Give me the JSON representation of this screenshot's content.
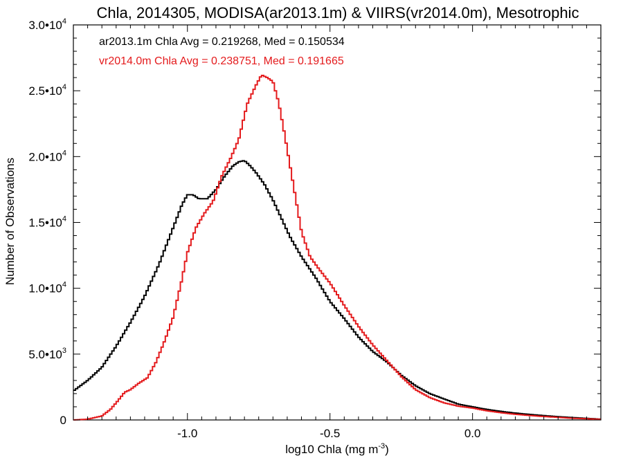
{
  "chart_data": {
    "type": "line",
    "title": "Chla, 2014305, MODISA(ar2013.1m) & VIIRS(vr2014.0m), Mesotrophic",
    "xlabel": "log10 Chla (mg m",
    "xlabel_sup": "-3",
    "xlabel_end": ")",
    "ylabel": "Number of Observations",
    "xlim": [
      -1.4,
      0.45
    ],
    "ylim": [
      0,
      30000
    ],
    "x_ticks": [
      {
        "value": -1.0,
        "label": "-1.0"
      },
      {
        "value": -0.5,
        "label": "-0.5"
      },
      {
        "value": 0.0,
        "label": "0.0"
      }
    ],
    "y_ticks": [
      {
        "value": 0,
        "mant": "0",
        "exp": ""
      },
      {
        "value": 5000,
        "mant": "5.0•10",
        "exp": "3"
      },
      {
        "value": 10000,
        "mant": "1.0•10",
        "exp": "4"
      },
      {
        "value": 15000,
        "mant": "1.5•10",
        "exp": "4"
      },
      {
        "value": 20000,
        "mant": "2.0•10",
        "exp": "4"
      },
      {
        "value": 25000,
        "mant": "2.5•10",
        "exp": "4"
      },
      {
        "value": 30000,
        "mant": "3.0•10",
        "exp": "4"
      }
    ],
    "legend": [
      {
        "text": "ar2013.1m Chla Avg = 0.219268, Med = 0.150534",
        "color": "#000000"
      },
      {
        "text": "vr2014.0m Chla Avg = 0.238751, Med = 0.191665",
        "color": "#e41a1c"
      }
    ],
    "series": [
      {
        "color": "#000000",
        "x": [
          -1.4,
          -1.35,
          -1.3,
          -1.25,
          -1.2,
          -1.15,
          -1.1,
          -1.05,
          -1.02,
          -1.0,
          -0.98,
          -0.96,
          -0.93,
          -0.9,
          -0.87,
          -0.84,
          -0.82,
          -0.8,
          -0.78,
          -0.76,
          -0.73,
          -0.7,
          -0.67,
          -0.64,
          -0.6,
          -0.55,
          -0.5,
          -0.45,
          -0.4,
          -0.35,
          -0.3,
          -0.25,
          -0.2,
          -0.15,
          -0.1,
          -0.05,
          0.0,
          0.05,
          0.1,
          0.15,
          0.2,
          0.25,
          0.3,
          0.35,
          0.4,
          0.45
        ],
        "y": [
          2200,
          3000,
          4000,
          5600,
          7400,
          9400,
          11800,
          14600,
          16300,
          17100,
          17100,
          16800,
          16800,
          17500,
          18500,
          19300,
          19600,
          19700,
          19300,
          18800,
          17900,
          16700,
          15300,
          13900,
          12400,
          10800,
          9000,
          7700,
          6300,
          5200,
          4400,
          3400,
          2600,
          2000,
          1600,
          1200,
          1000,
          800,
          650,
          520,
          420,
          330,
          250,
          180,
          120,
          60
        ]
      },
      {
        "color": "#e41a1c",
        "x": [
          -1.4,
          -1.35,
          -1.3,
          -1.27,
          -1.25,
          -1.22,
          -1.2,
          -1.17,
          -1.14,
          -1.11,
          -1.08,
          -1.05,
          -1.02,
          -1.0,
          -0.97,
          -0.94,
          -0.91,
          -0.88,
          -0.85,
          -0.82,
          -0.79,
          -0.76,
          -0.74,
          -0.72,
          -0.7,
          -0.68,
          -0.66,
          -0.64,
          -0.62,
          -0.6,
          -0.57,
          -0.54,
          -0.5,
          -0.45,
          -0.4,
          -0.35,
          -0.3,
          -0.25,
          -0.2,
          -0.15,
          -0.1,
          -0.05,
          0.0,
          0.05,
          0.1,
          0.15,
          0.2,
          0.25,
          0.3,
          0.35,
          0.4,
          0.45
        ],
        "y": [
          0,
          60,
          300,
          800,
          1300,
          2100,
          2300,
          2800,
          3200,
          4400,
          6000,
          7800,
          10600,
          12700,
          14600,
          15700,
          16600,
          18500,
          19800,
          21300,
          24000,
          25400,
          26200,
          26000,
          25700,
          24100,
          21800,
          19300,
          16800,
          14300,
          12400,
          11500,
          10400,
          8700,
          7100,
          5700,
          4500,
          3300,
          2300,
          1700,
          1300,
          1050,
          900,
          700,
          550,
          430,
          340,
          260,
          200,
          130,
          90,
          50
        ]
      }
    ]
  }
}
